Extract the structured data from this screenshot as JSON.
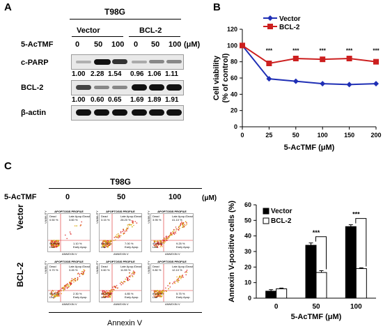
{
  "panelA": {
    "letter": "A",
    "cell_line": "T98G",
    "group_vector": "Vector",
    "group_bcl2": "BCL-2",
    "treatment_label": "5-AcTMF",
    "doses": [
      "0",
      "50",
      "100",
      "0",
      "50",
      "100"
    ],
    "unit": "(μM)",
    "rows": [
      {
        "protein": "c-PARP",
        "ratios": [
          "1.00",
          "2.28",
          "1.54",
          "0.96",
          "1.06",
          "1.11"
        ]
      },
      {
        "protein": "BCL-2",
        "ratios": [
          "1.00",
          "0.60",
          "0.65",
          "1.69",
          "1.89",
          "1.91"
        ]
      },
      {
        "protein": "β-actin",
        "ratios": []
      }
    ]
  },
  "panelB": {
    "letter": "B",
    "chart_data": {
      "type": "line",
      "x": [
        0,
        25,
        50,
        100,
        150,
        200
      ],
      "series": [
        {
          "name": "Vector",
          "values": [
            100,
            59,
            56,
            53,
            52,
            53
          ],
          "color": "#1f2fb5"
        },
        {
          "name": "BCL-2",
          "values": [
            100,
            78,
            84,
            83,
            84,
            80
          ],
          "color": "#cc1f1f"
        }
      ],
      "significance": [
        "",
        "***",
        "***",
        "***",
        "***",
        "***"
      ],
      "xlabel": "5-AcTMF (μM)",
      "ylabel": "Cell viability (% of control)",
      "ylim": [
        0,
        120
      ],
      "yticks": [
        0,
        20,
        40,
        60,
        80,
        100,
        120
      ],
      "xticks": [
        0,
        25,
        50,
        100,
        150,
        200
      ],
      "legend": "top-left",
      "grid": false
    }
  },
  "panelC": {
    "letter": "C",
    "cell_line": "T98G",
    "treatment_label": "5-AcTMF",
    "doses": [
      "0",
      "50",
      "100"
    ],
    "unit": "(μM)",
    "row_labels": [
      "Vector",
      "BCL-2"
    ],
    "flow_title": "APOPTOSIS PROFILE",
    "flow_quadrants": [
      "Dead",
      "Late Apop./Dead",
      "Live",
      "Early Apop."
    ],
    "flow_xaxis": "ANNEXIN V",
    "flow_yaxis": "VIABILITY",
    "flow_values": [
      [
        "0.50 %",
        "3.60 %",
        "94.80 %",
        "1.10 %"
      ],
      [
        "3.15 %",
        "28.20 %",
        "61.55 %",
        "7.00 %"
      ],
      [
        "3.95 %",
        "41.10 %",
        "45.80 %",
        "9.25 %"
      ],
      [
        "0.70 %",
        "3.45 %",
        "93.55 %",
        "2.30 %"
      ],
      [
        "0.60 %",
        "11.55 %",
        "83.00 %",
        "4.85 %"
      ],
      [
        "0.80 %",
        "12.10 %",
        "81.35 %",
        "5.75 %"
      ]
    ],
    "bottom_axis": "Annexin V",
    "chart_data": {
      "type": "bar",
      "categories": [
        "0",
        "50",
        "100"
      ],
      "series": [
        {
          "name": "Vector",
          "values": [
            4.5,
            34,
            46
          ],
          "errors": [
            1,
            1.5,
            1.2
          ],
          "color": "#000000"
        },
        {
          "name": "BCL-2",
          "values": [
            6,
            16.5,
            19
          ],
          "errors": [
            0.5,
            1.2,
            0.5
          ],
          "color": "#ffffff"
        }
      ],
      "significance": [
        "",
        "***",
        "***"
      ],
      "xlabel": "5-AcTMF (μM)",
      "ylabel": "Annexin V-positive cells (%)",
      "ylim": [
        0,
        60
      ],
      "yticks": [
        0,
        10,
        20,
        30,
        40,
        50,
        60
      ],
      "legend": "top-left",
      "grid": false
    }
  }
}
